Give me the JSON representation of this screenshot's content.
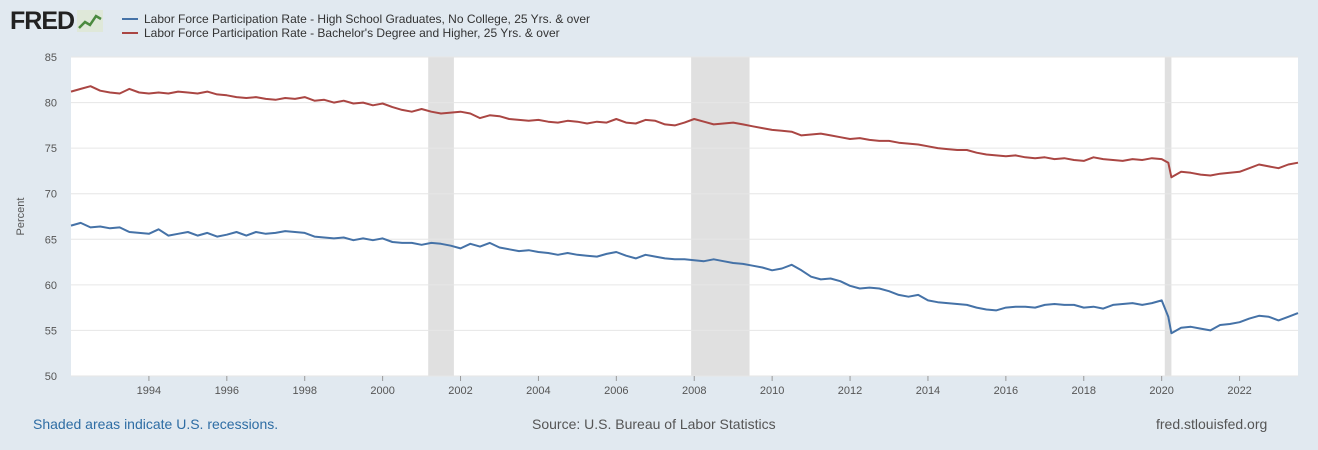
{
  "brand": {
    "name": "FRED"
  },
  "colors": {
    "series1": "#4572a7",
    "series2": "#aa4643",
    "recession": "#e0e0e0",
    "grid": "#e6e6e6"
  },
  "footer": {
    "recession_note": "Shaded areas indicate U.S. recessions.",
    "source": "Source: U.S. Bureau of Labor Statistics",
    "site": "fred.stlouisfed.org"
  },
  "chart_data": {
    "type": "line",
    "title": "",
    "xlabel": "",
    "ylabel": "Percent",
    "xlim": [
      1992.0,
      2023.5
    ],
    "ylim": [
      50,
      85
    ],
    "y_ticks": [
      50,
      55,
      60,
      65,
      70,
      75,
      80,
      85
    ],
    "x_ticks": [
      1994,
      1996,
      1998,
      2000,
      2002,
      2004,
      2006,
      2008,
      2010,
      2012,
      2014,
      2016,
      2018,
      2020,
      2022
    ],
    "grid": true,
    "legend_position": "top",
    "recessions": [
      [
        2001.17,
        2001.83
      ],
      [
        2007.92,
        2009.42
      ],
      [
        2020.08,
        2020.25
      ]
    ],
    "series": [
      {
        "name": "Labor Force Participation Rate - High School Graduates, No College, 25 Yrs. & over",
        "color": "#4572a7",
        "points": [
          [
            1992.0,
            66.5
          ],
          [
            1992.25,
            66.8
          ],
          [
            1992.5,
            66.3
          ],
          [
            1992.75,
            66.4
          ],
          [
            1993.0,
            66.2
          ],
          [
            1993.25,
            66.3
          ],
          [
            1993.5,
            65.8
          ],
          [
            1993.75,
            65.7
          ],
          [
            1994.0,
            65.6
          ],
          [
            1994.25,
            66.1
          ],
          [
            1994.5,
            65.4
          ],
          [
            1994.75,
            65.6
          ],
          [
            1995.0,
            65.8
          ],
          [
            1995.25,
            65.4
          ],
          [
            1995.5,
            65.7
          ],
          [
            1995.75,
            65.3
          ],
          [
            1996.0,
            65.5
          ],
          [
            1996.25,
            65.8
          ],
          [
            1996.5,
            65.4
          ],
          [
            1996.75,
            65.8
          ],
          [
            1997.0,
            65.6
          ],
          [
            1997.25,
            65.7
          ],
          [
            1997.5,
            65.9
          ],
          [
            1997.75,
            65.8
          ],
          [
            1998.0,
            65.7
          ],
          [
            1998.25,
            65.3
          ],
          [
            1998.5,
            65.2
          ],
          [
            1998.75,
            65.1
          ],
          [
            1999.0,
            65.2
          ],
          [
            1999.25,
            64.9
          ],
          [
            1999.5,
            65.1
          ],
          [
            1999.75,
            64.9
          ],
          [
            2000.0,
            65.1
          ],
          [
            2000.25,
            64.7
          ],
          [
            2000.5,
            64.6
          ],
          [
            2000.75,
            64.6
          ],
          [
            2001.0,
            64.4
          ],
          [
            2001.25,
            64.6
          ],
          [
            2001.5,
            64.5
          ],
          [
            2001.75,
            64.3
          ],
          [
            2002.0,
            64.0
          ],
          [
            2002.25,
            64.5
          ],
          [
            2002.5,
            64.2
          ],
          [
            2002.75,
            64.6
          ],
          [
            2003.0,
            64.1
          ],
          [
            2003.25,
            63.9
          ],
          [
            2003.5,
            63.7
          ],
          [
            2003.75,
            63.8
          ],
          [
            2004.0,
            63.6
          ],
          [
            2004.25,
            63.5
          ],
          [
            2004.5,
            63.3
          ],
          [
            2004.75,
            63.5
          ],
          [
            2005.0,
            63.3
          ],
          [
            2005.25,
            63.2
          ],
          [
            2005.5,
            63.1
          ],
          [
            2005.75,
            63.4
          ],
          [
            2006.0,
            63.6
          ],
          [
            2006.25,
            63.2
          ],
          [
            2006.5,
            62.9
          ],
          [
            2006.75,
            63.3
          ],
          [
            2007.0,
            63.1
          ],
          [
            2007.25,
            62.9
          ],
          [
            2007.5,
            62.8
          ],
          [
            2007.75,
            62.8
          ],
          [
            2008.0,
            62.7
          ],
          [
            2008.25,
            62.6
          ],
          [
            2008.5,
            62.8
          ],
          [
            2008.75,
            62.6
          ],
          [
            2009.0,
            62.4
          ],
          [
            2009.25,
            62.3
          ],
          [
            2009.5,
            62.1
          ],
          [
            2009.75,
            61.9
          ],
          [
            2010.0,
            61.6
          ],
          [
            2010.25,
            61.8
          ],
          [
            2010.5,
            62.2
          ],
          [
            2010.75,
            61.6
          ],
          [
            2011.0,
            60.9
          ],
          [
            2011.25,
            60.6
          ],
          [
            2011.5,
            60.7
          ],
          [
            2011.75,
            60.4
          ],
          [
            2012.0,
            59.9
          ],
          [
            2012.25,
            59.6
          ],
          [
            2012.5,
            59.7
          ],
          [
            2012.75,
            59.6
          ],
          [
            2013.0,
            59.3
          ],
          [
            2013.25,
            58.9
          ],
          [
            2013.5,
            58.7
          ],
          [
            2013.75,
            58.9
          ],
          [
            2014.0,
            58.3
          ],
          [
            2014.25,
            58.1
          ],
          [
            2014.5,
            58.0
          ],
          [
            2014.75,
            57.9
          ],
          [
            2015.0,
            57.8
          ],
          [
            2015.25,
            57.5
          ],
          [
            2015.5,
            57.3
          ],
          [
            2015.75,
            57.2
          ],
          [
            2016.0,
            57.5
          ],
          [
            2016.25,
            57.6
          ],
          [
            2016.5,
            57.6
          ],
          [
            2016.75,
            57.5
          ],
          [
            2017.0,
            57.8
          ],
          [
            2017.25,
            57.9
          ],
          [
            2017.5,
            57.8
          ],
          [
            2017.75,
            57.8
          ],
          [
            2018.0,
            57.5
          ],
          [
            2018.25,
            57.6
          ],
          [
            2018.5,
            57.4
          ],
          [
            2018.75,
            57.8
          ],
          [
            2019.0,
            57.9
          ],
          [
            2019.25,
            58.0
          ],
          [
            2019.5,
            57.8
          ],
          [
            2019.75,
            58.0
          ],
          [
            2020.0,
            58.3
          ],
          [
            2020.17,
            56.5
          ],
          [
            2020.25,
            54.7
          ],
          [
            2020.5,
            55.3
          ],
          [
            2020.75,
            55.4
          ],
          [
            2021.0,
            55.2
          ],
          [
            2021.25,
            55.0
          ],
          [
            2021.5,
            55.6
          ],
          [
            2021.75,
            55.7
          ],
          [
            2022.0,
            55.9
          ],
          [
            2022.25,
            56.3
          ],
          [
            2022.5,
            56.6
          ],
          [
            2022.75,
            56.5
          ],
          [
            2023.0,
            56.1
          ],
          [
            2023.25,
            56.5
          ],
          [
            2023.5,
            56.9
          ]
        ]
      },
      {
        "name": "Labor Force Participation Rate - Bachelor's Degree and Higher, 25 Yrs. & over",
        "color": "#aa4643",
        "points": [
          [
            1992.0,
            81.2
          ],
          [
            1992.25,
            81.5
          ],
          [
            1992.5,
            81.8
          ],
          [
            1992.75,
            81.3
          ],
          [
            1993.0,
            81.1
          ],
          [
            1993.25,
            81.0
          ],
          [
            1993.5,
            81.5
          ],
          [
            1993.75,
            81.1
          ],
          [
            1994.0,
            81.0
          ],
          [
            1994.25,
            81.1
          ],
          [
            1994.5,
            81.0
          ],
          [
            1994.75,
            81.2
          ],
          [
            1995.0,
            81.1
          ],
          [
            1995.25,
            81.0
          ],
          [
            1995.5,
            81.2
          ],
          [
            1995.75,
            80.9
          ],
          [
            1996.0,
            80.8
          ],
          [
            1996.25,
            80.6
          ],
          [
            1996.5,
            80.5
          ],
          [
            1996.75,
            80.6
          ],
          [
            1997.0,
            80.4
          ],
          [
            1997.25,
            80.3
          ],
          [
            1997.5,
            80.5
          ],
          [
            1997.75,
            80.4
          ],
          [
            1998.0,
            80.6
          ],
          [
            1998.25,
            80.2
          ],
          [
            1998.5,
            80.3
          ],
          [
            1998.75,
            80.0
          ],
          [
            1999.0,
            80.2
          ],
          [
            1999.25,
            79.9
          ],
          [
            1999.5,
            80.0
          ],
          [
            1999.75,
            79.7
          ],
          [
            2000.0,
            79.9
          ],
          [
            2000.25,
            79.5
          ],
          [
            2000.5,
            79.2
          ],
          [
            2000.75,
            79.0
          ],
          [
            2001.0,
            79.3
          ],
          [
            2001.25,
            79.0
          ],
          [
            2001.5,
            78.8
          ],
          [
            2001.75,
            78.9
          ],
          [
            2002.0,
            79.0
          ],
          [
            2002.25,
            78.8
          ],
          [
            2002.5,
            78.3
          ],
          [
            2002.75,
            78.6
          ],
          [
            2003.0,
            78.5
          ],
          [
            2003.25,
            78.2
          ],
          [
            2003.5,
            78.1
          ],
          [
            2003.75,
            78.0
          ],
          [
            2004.0,
            78.1
          ],
          [
            2004.25,
            77.9
          ],
          [
            2004.5,
            77.8
          ],
          [
            2004.75,
            78.0
          ],
          [
            2005.0,
            77.9
          ],
          [
            2005.25,
            77.7
          ],
          [
            2005.5,
            77.9
          ],
          [
            2005.75,
            77.8
          ],
          [
            2006.0,
            78.2
          ],
          [
            2006.25,
            77.8
          ],
          [
            2006.5,
            77.7
          ],
          [
            2006.75,
            78.1
          ],
          [
            2007.0,
            78.0
          ],
          [
            2007.25,
            77.6
          ],
          [
            2007.5,
            77.5
          ],
          [
            2007.75,
            77.8
          ],
          [
            2008.0,
            78.2
          ],
          [
            2008.25,
            77.9
          ],
          [
            2008.5,
            77.6
          ],
          [
            2008.75,
            77.7
          ],
          [
            2009.0,
            77.8
          ],
          [
            2009.25,
            77.6
          ],
          [
            2009.5,
            77.4
          ],
          [
            2009.75,
            77.2
          ],
          [
            2010.0,
            77.0
          ],
          [
            2010.25,
            76.9
          ],
          [
            2010.5,
            76.8
          ],
          [
            2010.75,
            76.4
          ],
          [
            2011.0,
            76.5
          ],
          [
            2011.25,
            76.6
          ],
          [
            2011.5,
            76.4
          ],
          [
            2011.75,
            76.2
          ],
          [
            2012.0,
            76.0
          ],
          [
            2012.25,
            76.1
          ],
          [
            2012.5,
            75.9
          ],
          [
            2012.75,
            75.8
          ],
          [
            2013.0,
            75.8
          ],
          [
            2013.25,
            75.6
          ],
          [
            2013.5,
            75.5
          ],
          [
            2013.75,
            75.4
          ],
          [
            2014.0,
            75.2
          ],
          [
            2014.25,
            75.0
          ],
          [
            2014.5,
            74.9
          ],
          [
            2014.75,
            74.8
          ],
          [
            2015.0,
            74.8
          ],
          [
            2015.25,
            74.5
          ],
          [
            2015.5,
            74.3
          ],
          [
            2015.75,
            74.2
          ],
          [
            2016.0,
            74.1
          ],
          [
            2016.25,
            74.2
          ],
          [
            2016.5,
            74.0
          ],
          [
            2016.75,
            73.9
          ],
          [
            2017.0,
            74.0
          ],
          [
            2017.25,
            73.8
          ],
          [
            2017.5,
            73.9
          ],
          [
            2017.75,
            73.7
          ],
          [
            2018.0,
            73.6
          ],
          [
            2018.25,
            74.0
          ],
          [
            2018.5,
            73.8
          ],
          [
            2018.75,
            73.7
          ],
          [
            2019.0,
            73.6
          ],
          [
            2019.25,
            73.8
          ],
          [
            2019.5,
            73.7
          ],
          [
            2019.75,
            73.9
          ],
          [
            2020.0,
            73.8
          ],
          [
            2020.17,
            73.4
          ],
          [
            2020.25,
            71.8
          ],
          [
            2020.5,
            72.4
          ],
          [
            2020.75,
            72.3
          ],
          [
            2021.0,
            72.1
          ],
          [
            2021.25,
            72.0
          ],
          [
            2021.5,
            72.2
          ],
          [
            2021.75,
            72.3
          ],
          [
            2022.0,
            72.4
          ],
          [
            2022.25,
            72.8
          ],
          [
            2022.5,
            73.2
          ],
          [
            2022.75,
            73.0
          ],
          [
            2023.0,
            72.8
          ],
          [
            2023.25,
            73.2
          ],
          [
            2023.5,
            73.4
          ]
        ]
      }
    ]
  }
}
